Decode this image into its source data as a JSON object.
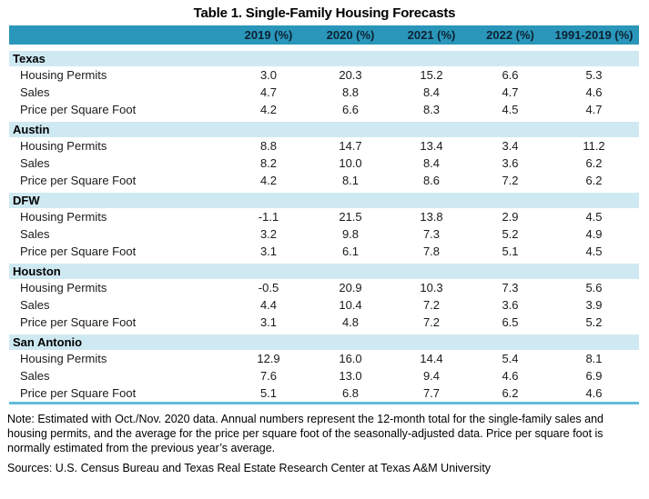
{
  "title": "Table 1. Single-Family Housing Forecasts",
  "colors": {
    "header_bg": "#2a96ba",
    "group_band_bg": "#cfe9f2",
    "bottom_rule": "#63bcd9",
    "header_text": "#0c2233"
  },
  "table": {
    "columns": [
      "2019 (%)",
      "2020 (%)",
      "2021 (%)",
      "2022 (%)",
      "1991-2019 (%)"
    ],
    "groups": [
      {
        "name": "Texas",
        "rows": [
          {
            "label": "Housing Permits",
            "values": [
              "3.0",
              "20.3",
              "15.2",
              "6.6",
              "5.3"
            ]
          },
          {
            "label": "Sales",
            "values": [
              "4.7",
              "8.8",
              "8.4",
              "4.7",
              "4.6"
            ]
          },
          {
            "label": "Price per Square Foot",
            "values": [
              "4.2",
              "6.6",
              "8.3",
              "4.5",
              "4.7"
            ]
          }
        ]
      },
      {
        "name": "Austin",
        "rows": [
          {
            "label": "Housing Permits",
            "values": [
              "8.8",
              "14.7",
              "13.4",
              "3.4",
              "11.2"
            ]
          },
          {
            "label": "Sales",
            "values": [
              "8.2",
              "10.0",
              "8.4",
              "3.6",
              "6.2"
            ]
          },
          {
            "label": "Price per Square Foot",
            "values": [
              "4.2",
              "8.1",
              "8.6",
              "7.2",
              "6.2"
            ]
          }
        ]
      },
      {
        "name": "DFW",
        "rows": [
          {
            "label": "Housing Permits",
            "values": [
              "-1.1",
              "21.5",
              "13.8",
              "2.9",
              "4.5"
            ]
          },
          {
            "label": "Sales",
            "values": [
              "3.2",
              "9.8",
              "7.3",
              "5.2",
              "4.9"
            ]
          },
          {
            "label": "Price per Square Foot",
            "values": [
              "3.1",
              "6.1",
              "7.8",
              "5.1",
              "4.5"
            ]
          }
        ]
      },
      {
        "name": "Houston",
        "rows": [
          {
            "label": "Housing Permits",
            "values": [
              "-0.5",
              "20.9",
              "10.3",
              "7.3",
              "5.6"
            ]
          },
          {
            "label": "Sales",
            "values": [
              "4.4",
              "10.4",
              "7.2",
              "3.6",
              "3.9"
            ]
          },
          {
            "label": "Price per Square Foot",
            "values": [
              "3.1",
              "4.8",
              "7.2",
              "6.5",
              "5.2"
            ]
          }
        ]
      },
      {
        "name": "San Antonio",
        "rows": [
          {
            "label": "Housing Permits",
            "values": [
              "12.9",
              "16.0",
              "14.4",
              "5.4",
              "8.1"
            ]
          },
          {
            "label": "Sales",
            "values": [
              "7.6",
              "13.0",
              "9.4",
              "4.6",
              "6.9"
            ]
          },
          {
            "label": "Price per Square Foot",
            "values": [
              "5.1",
              "6.8",
              "7.7",
              "6.2",
              "4.6"
            ]
          }
        ]
      }
    ]
  },
  "notes": {
    "note": "Note: Estimated with Oct./Nov. 2020 data. Annual numbers represent the 12-month total for the single-family sales and housing permits, and the average for the price per square foot of the seasonally-adjusted data. Price per square foot is normally estimated from the previous year’s average.",
    "sources": "Sources: U.S. Census Bureau and Texas Real Estate Research Center at Texas A&M University"
  },
  "chart_data": {
    "type": "table",
    "title": "Table 1. Single-Family Housing Forecasts",
    "columns": [
      "2019 (%)",
      "2020 (%)",
      "2021 (%)",
      "2022 (%)",
      "1991-2019 (%)"
    ],
    "row_groups": {
      "Texas": {
        "Housing Permits": [
          3.0,
          20.3,
          15.2,
          6.6,
          5.3
        ],
        "Sales": [
          4.7,
          8.8,
          8.4,
          4.7,
          4.6
        ],
        "Price per Square Foot": [
          4.2,
          6.6,
          8.3,
          4.5,
          4.7
        ]
      },
      "Austin": {
        "Housing Permits": [
          8.8,
          14.7,
          13.4,
          3.4,
          11.2
        ],
        "Sales": [
          8.2,
          10.0,
          8.4,
          3.6,
          6.2
        ],
        "Price per Square Foot": [
          4.2,
          8.1,
          8.6,
          7.2,
          6.2
        ]
      },
      "DFW": {
        "Housing Permits": [
          -1.1,
          21.5,
          13.8,
          2.9,
          4.5
        ],
        "Sales": [
          3.2,
          9.8,
          7.3,
          5.2,
          4.9
        ],
        "Price per Square Foot": [
          3.1,
          6.1,
          7.8,
          5.1,
          4.5
        ]
      },
      "Houston": {
        "Housing Permits": [
          -0.5,
          20.9,
          10.3,
          7.3,
          5.6
        ],
        "Sales": [
          4.4,
          10.4,
          7.2,
          3.6,
          3.9
        ],
        "Price per Square Foot": [
          3.1,
          4.8,
          7.2,
          6.5,
          5.2
        ]
      },
      "San Antonio": {
        "Housing Permits": [
          12.9,
          16.0,
          14.4,
          5.4,
          8.1
        ],
        "Sales": [
          7.6,
          13.0,
          9.4,
          4.6,
          6.9
        ],
        "Price per Square Foot": [
          5.1,
          6.8,
          7.7,
          6.2,
          4.6
        ]
      }
    }
  }
}
